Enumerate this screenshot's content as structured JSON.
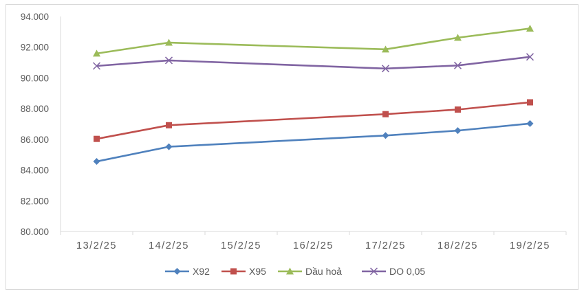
{
  "chart_data": {
    "type": "line",
    "categories": [
      "13/2/25",
      "14/2/25",
      "15/2/25",
      "16/2/25",
      "17/2/25",
      "18/2/25",
      "19/2/25"
    ],
    "yticks": [
      "80.000",
      "82.000",
      "84.000",
      "86.000",
      "88.000",
      "90.000",
      "92.000",
      "94.000"
    ],
    "ylim": [
      80000,
      94000
    ],
    "grid": false,
    "legend": "bottom",
    "series": [
      {
        "name": "X92",
        "color": "#4f81bd",
        "marker": "diamond",
        "values": [
          84560,
          85520,
          null,
          null,
          86250,
          86570,
          87030
        ]
      },
      {
        "name": "X95",
        "color": "#c0504d",
        "marker": "square",
        "values": [
          86030,
          86920,
          null,
          null,
          87640,
          87940,
          88410
        ]
      },
      {
        "name": "Dầu hoả",
        "color": "#9bbb59",
        "marker": "triangle",
        "values": [
          91590,
          92300,
          null,
          null,
          91860,
          92620,
          93220
        ]
      },
      {
        "name": "DO 0,05",
        "color": "#8064a2",
        "marker": "x",
        "values": [
          90780,
          91140,
          null,
          null,
          90610,
          90810,
          91370
        ]
      }
    ]
  }
}
